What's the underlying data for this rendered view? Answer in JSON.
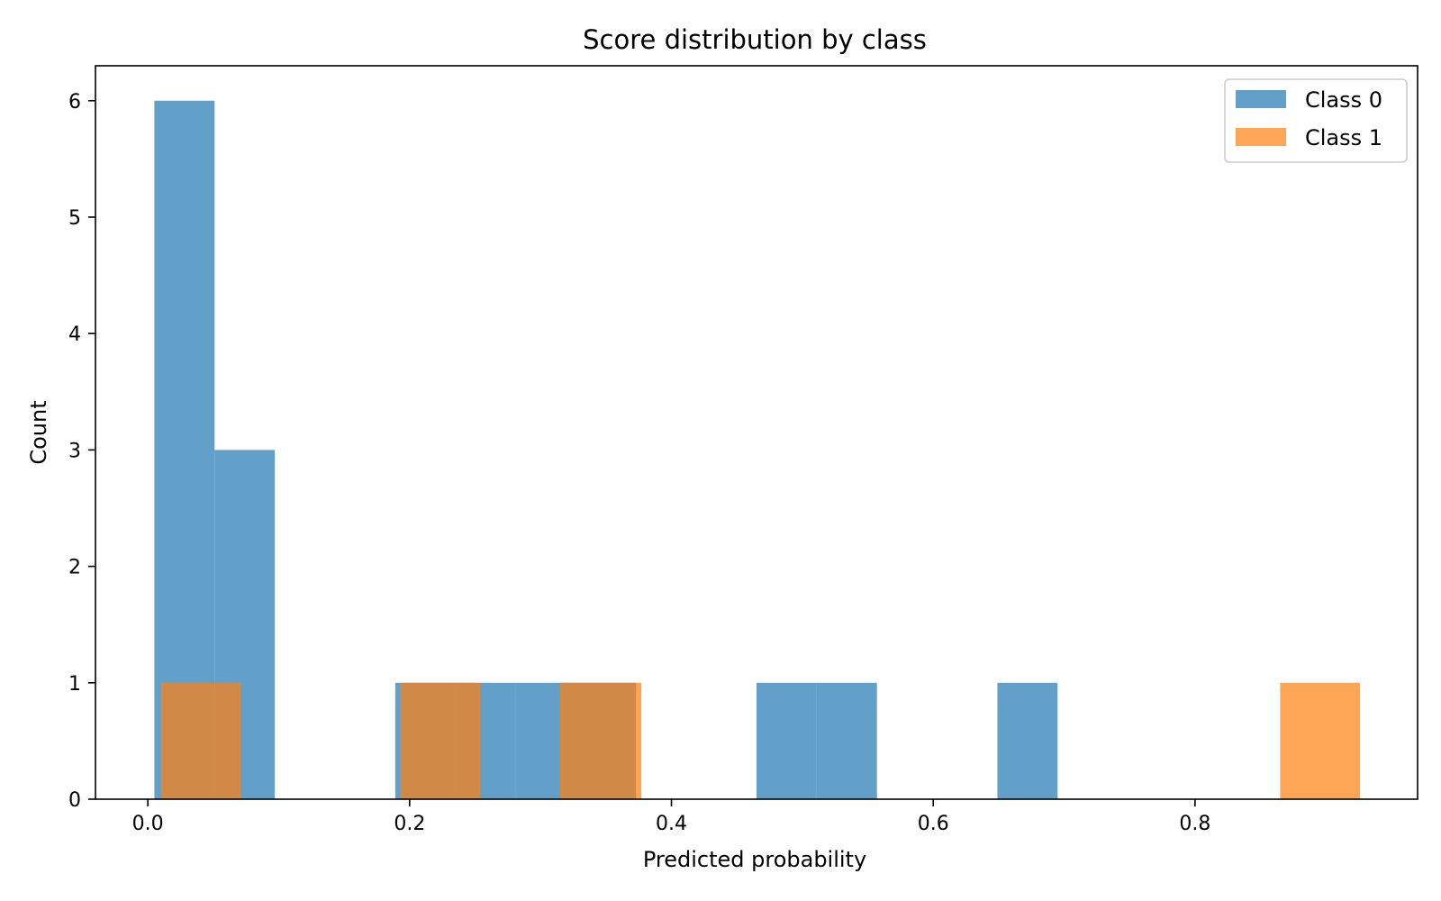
{
  "chart_data": {
    "type": "bar",
    "title": "Score distribution by class",
    "xlabel": "Predicted probability",
    "ylabel": "Count",
    "xlim": [
      -0.04,
      0.97
    ],
    "ylim": [
      0,
      6.3
    ],
    "xticks": [
      0.0,
      0.2,
      0.4,
      0.6,
      0.8
    ],
    "xtick_labels": [
      "0.0",
      "0.2",
      "0.4",
      "0.6",
      "0.8"
    ],
    "yticks": [
      0,
      1,
      2,
      3,
      4,
      5,
      6
    ],
    "ytick_labels": [
      "0",
      "1",
      "2",
      "3",
      "4",
      "5",
      "6"
    ],
    "grid": false,
    "legend_position": "top-right",
    "series": [
      {
        "name": "Class 0",
        "color": "#1f77b4",
        "opacity": 0.7,
        "bins": [
          {
            "start": 0.005,
            "end": 0.051,
            "count": 6
          },
          {
            "start": 0.051,
            "end": 0.097,
            "count": 3
          },
          {
            "start": 0.189,
            "end": 0.235,
            "count": 1
          },
          {
            "start": 0.235,
            "end": 0.281,
            "count": 1
          },
          {
            "start": 0.281,
            "end": 0.327,
            "count": 1
          },
          {
            "start": 0.327,
            "end": 0.373,
            "count": 1
          },
          {
            "start": 0.465,
            "end": 0.511,
            "count": 1
          },
          {
            "start": 0.511,
            "end": 0.557,
            "count": 1
          },
          {
            "start": 0.649,
            "end": 0.695,
            "count": 1
          }
        ]
      },
      {
        "name": "Class 1",
        "color": "#ff7f0e",
        "opacity": 0.7,
        "bins": [
          {
            "start": 0.01,
            "end": 0.071,
            "count": 1
          },
          {
            "start": 0.193,
            "end": 0.254,
            "count": 1
          },
          {
            "start": 0.315,
            "end": 0.377,
            "count": 1
          },
          {
            "start": 0.865,
            "end": 0.926,
            "count": 1
          }
        ]
      }
    ]
  }
}
